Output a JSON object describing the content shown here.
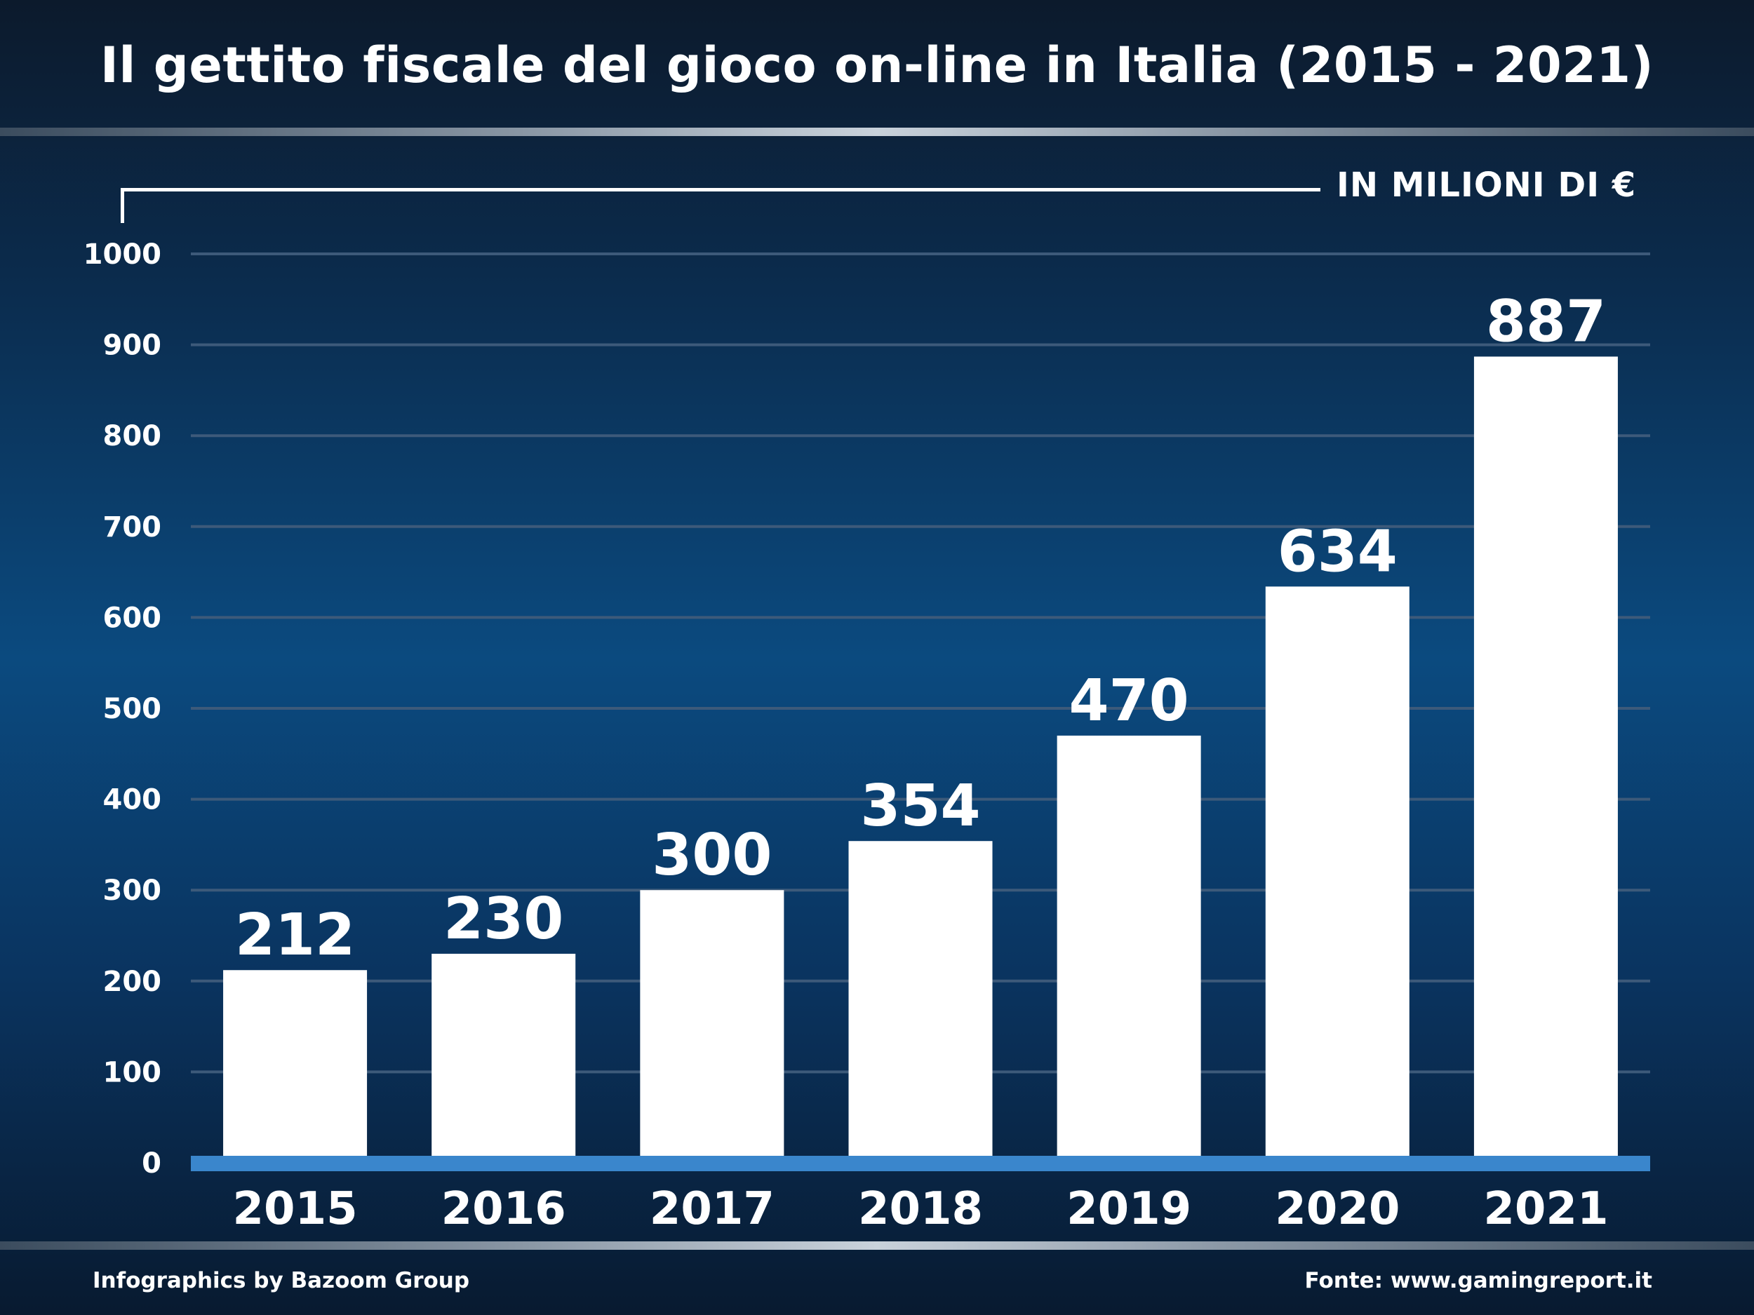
{
  "title": "Il gettito fiscale del gioco on-line in Italia (2015 - 2021)",
  "unit_label": "IN MILIONI DI €",
  "footer": {
    "credit": "Infographics by Bazoom Group",
    "source": "Fonte: www.gamingreport.it"
  },
  "colors": {
    "bar": "#ffffff",
    "baseline": "#3a86cc",
    "gridline": "#3d5a7a",
    "text": "#ffffff"
  },
  "chart_data": {
    "type": "bar",
    "title": "Il gettito fiscale del gioco on-line in Italia (2015 - 2021)",
    "ylabel": "IN MILIONI DI €",
    "categories": [
      "2015",
      "2016",
      "2017",
      "2018",
      "2019",
      "2020",
      "2021"
    ],
    "values": [
      212,
      230,
      300,
      354,
      470,
      634,
      887
    ],
    "data_labels": [
      "212",
      "230",
      "300",
      "354",
      "470",
      "634",
      "887"
    ],
    "ylim": [
      0,
      1000
    ],
    "yticks": [
      0,
      100,
      200,
      300,
      400,
      500,
      600,
      700,
      800,
      900,
      1000
    ],
    "ytick_labels": [
      "0",
      "100",
      "200",
      "300",
      "400",
      "500",
      "600",
      "700",
      "800",
      "900",
      "1000"
    ],
    "grid": true,
    "legend": "none"
  }
}
